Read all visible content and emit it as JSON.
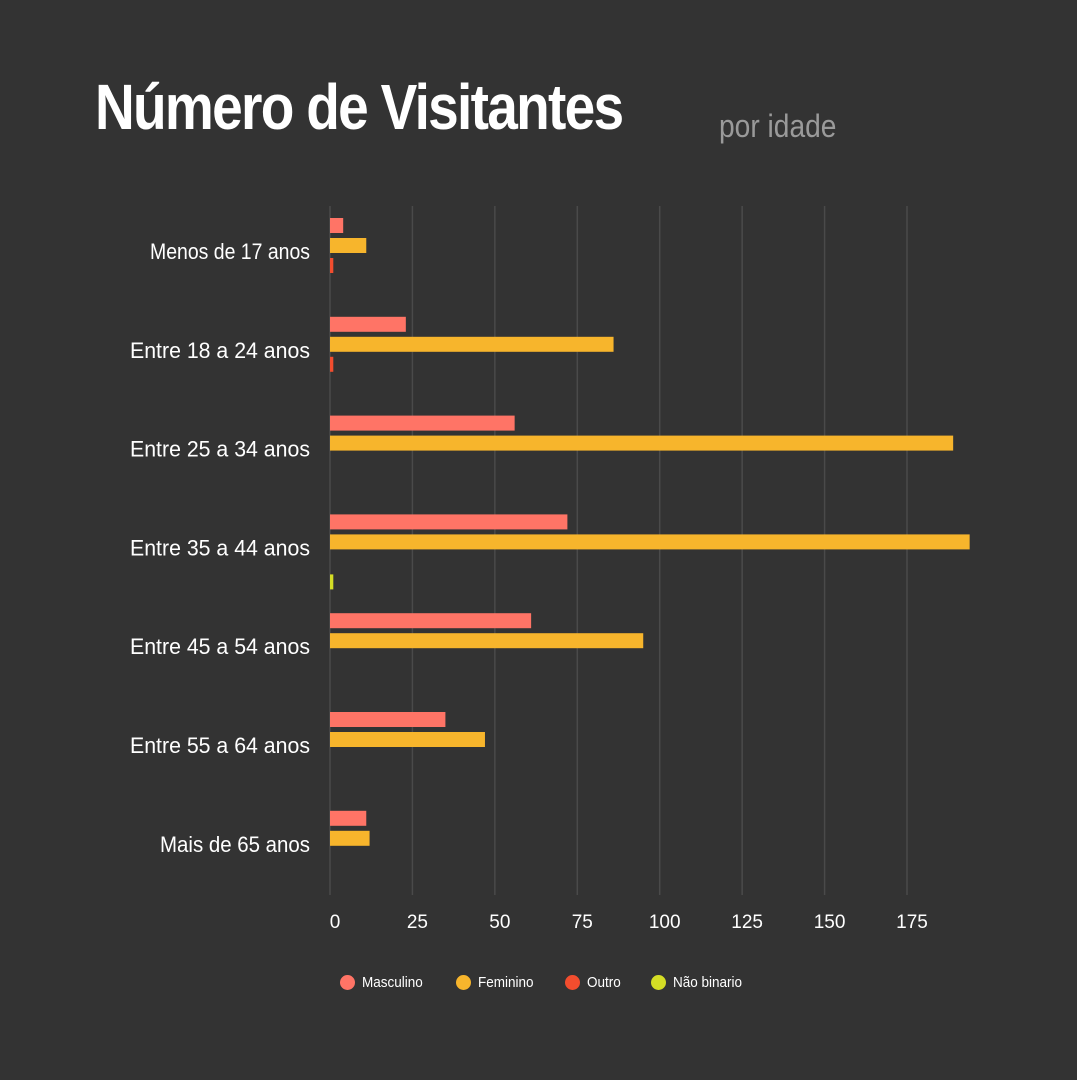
{
  "header": {
    "title": "Número de Visitantes",
    "subtitle": "por idade"
  },
  "chart_data": {
    "type": "bar",
    "orientation": "horizontal",
    "categories": [
      "Menos de 17 anos",
      "Entre 18 a 24 anos",
      "Entre 25 a 34 anos",
      "Entre 35 a 44 anos",
      "Entre 45 a 54 anos",
      "Entre 55 a 64 anos",
      "Mais de 65 anos"
    ],
    "series": [
      {
        "name": "Masculino",
        "color": "#ff7466",
        "values": [
          4,
          23,
          56,
          72,
          61,
          35,
          11
        ]
      },
      {
        "name": "Feminino",
        "color": "#f7b52c",
        "values": [
          11,
          86,
          189,
          194,
          95,
          47,
          12
        ]
      },
      {
        "name": "Outro",
        "color": "#f24d2e",
        "values": [
          1,
          1,
          0,
          0,
          0,
          0,
          0
        ]
      },
      {
        "name": "Não binario",
        "color": "#d4dd25",
        "values": [
          0,
          0,
          0,
          1,
          0,
          0,
          0
        ]
      }
    ],
    "xlim": [
      0,
      195
    ],
    "xticks": [
      "0",
      "25",
      "50",
      "75",
      "100",
      "125",
      "150",
      "175"
    ],
    "xtick_values": [
      0,
      25,
      50,
      75,
      100,
      125,
      150,
      175
    ],
    "grid": "vertical",
    "legend_position": "bottom"
  }
}
